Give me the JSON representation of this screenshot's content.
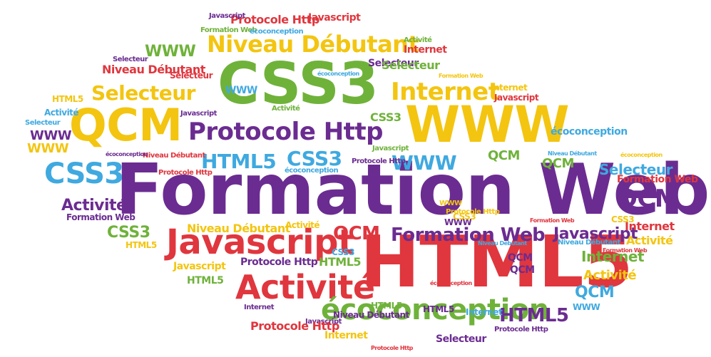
{
  "palette": {
    "purple": "#6b2c91",
    "green": "#6fb23a",
    "yellow": "#f3c510",
    "red": "#e0363e",
    "blue": "#3fa9e0"
  },
  "words": [
    {
      "text": "Formation Web",
      "color": "purple"
    },
    {
      "text": "HTML5",
      "color": "red"
    },
    {
      "text": "CSS3",
      "color": "green"
    },
    {
      "text": "WWW",
      "color": "yellow"
    },
    {
      "text": "QCM",
      "color": "yellow"
    },
    {
      "text": "Javascript",
      "color": "red"
    },
    {
      "text": "Activité",
      "color": "red"
    },
    {
      "text": "écoconception",
      "color": "green"
    },
    {
      "text": "Niveau Débutant",
      "color": "yellow"
    },
    {
      "text": "Protocole Http",
      "color": "purple"
    },
    {
      "text": "Internet",
      "color": "yellow"
    },
    {
      "text": "Selecteur",
      "color": "yellow"
    },
    {
      "text": "CSS3",
      "color": "blue"
    },
    {
      "text": "HTML5",
      "color": "blue"
    },
    {
      "text": "CSS3",
      "color": "blue"
    },
    {
      "text": "WWW",
      "color": "blue"
    },
    {
      "text": "QCM",
      "color": "purple"
    },
    {
      "text": "Formation Web",
      "color": "purple"
    },
    {
      "text": "QCM",
      "color": "red"
    },
    {
      "text": "Javascript",
      "color": "purple"
    },
    {
      "text": "Activité",
      "color": "purple"
    },
    {
      "text": "CSS3",
      "color": "green"
    },
    {
      "text": "WWW",
      "color": "green"
    },
    {
      "text": "Protocole Http",
      "color": "red"
    },
    {
      "text": "Niveau Débutant",
      "color": "red"
    },
    {
      "text": "Selecteur",
      "color": "purple"
    },
    {
      "text": "Internet",
      "color": "green"
    },
    {
      "text": "Formation Web",
      "color": "purple"
    },
    {
      "text": "Selecteur",
      "color": "blue"
    },
    {
      "text": "écoconception",
      "color": "blue"
    },
    {
      "text": "HTML5",
      "color": "purple"
    },
    {
      "text": "Internet",
      "color": "green"
    },
    {
      "text": "Activité",
      "color": "yellow"
    },
    {
      "text": "QCM",
      "color": "blue"
    },
    {
      "text": "Internet",
      "color": "red"
    },
    {
      "text": "Activité",
      "color": "yellow"
    },
    {
      "text": "Javascript",
      "color": "red"
    },
    {
      "text": "Internet",
      "color": "red"
    },
    {
      "text": "Formation Web",
      "color": "red"
    },
    {
      "text": "Selecteur",
      "color": "green"
    },
    {
      "text": "Protocole Http",
      "color": "purple"
    },
    {
      "text": "écoconception",
      "color": "purple"
    },
    {
      "text": "Internet",
      "color": "yellow"
    },
    {
      "text": "Niveau Débutant",
      "color": "yellow"
    },
    {
      "text": "Niveau Débutant",
      "color": "purple"
    },
    {
      "text": "Javascript",
      "color": "yellow"
    },
    {
      "text": "HTML5",
      "color": "green"
    },
    {
      "text": "HTML5",
      "color": "green"
    },
    {
      "text": "HTML5",
      "color": "yellow"
    },
    {
      "text": "CSS3",
      "color": "blue"
    },
    {
      "text": "QCM",
      "color": "green"
    },
    {
      "text": "QCM",
      "color": "green"
    },
    {
      "text": "QCM",
      "color": "purple"
    },
    {
      "text": "QCM",
      "color": "purple"
    },
    {
      "text": "WWW",
      "color": "purple"
    },
    {
      "text": "WWW",
      "color": "yellow"
    },
    {
      "text": "WWW",
      "color": "blue"
    },
    {
      "text": "WWW",
      "color": "purple"
    },
    {
      "text": "WWW",
      "color": "blue"
    },
    {
      "text": "Activité",
      "color": "yellow"
    },
    {
      "text": "Activité",
      "color": "green"
    },
    {
      "text": "Activité",
      "color": "blue"
    },
    {
      "text": "HTML5",
      "color": "yellow"
    },
    {
      "text": "Selecteur",
      "color": "purple"
    },
    {
      "text": "Selecteur",
      "color": "blue"
    },
    {
      "text": "Selecteur",
      "color": "red"
    },
    {
      "text": "Javascript",
      "color": "purple"
    },
    {
      "text": "Javascript",
      "color": "red"
    },
    {
      "text": "Javascript",
      "color": "purple"
    },
    {
      "text": "Javascript",
      "color": "purple"
    },
    {
      "text": "Protocole Http",
      "color": "red"
    },
    {
      "text": "Protocole Http",
      "color": "yellow"
    },
    {
      "text": "Protocole Http",
      "color": "purple"
    },
    {
      "text": "Protocole Http",
      "color": "purple"
    },
    {
      "text": "Protocole Http",
      "color": "red"
    },
    {
      "text": "Formation Web",
      "color": "purple"
    },
    {
      "text": "Formation Web",
      "color": "yellow"
    },
    {
      "text": "Formation Web",
      "color": "red"
    },
    {
      "text": "Formation Web",
      "color": "green"
    },
    {
      "text": "Niveau Débutant",
      "color": "blue"
    },
    {
      "text": "Niveau Débutant",
      "color": "blue"
    },
    {
      "text": "Niveau Débutant",
      "color": "red"
    },
    {
      "text": "écoconception",
      "color": "blue"
    },
    {
      "text": "écoconception",
      "color": "blue"
    },
    {
      "text": "écoconception",
      "color": "yellow"
    },
    {
      "text": "écoconception",
      "color": "purple"
    },
    {
      "text": "écoconception",
      "color": "blue"
    },
    {
      "text": "Internet",
      "color": "purple"
    },
    {
      "text": "Internet",
      "color": "yellow"
    },
    {
      "text": "Internet",
      "color": "blue"
    },
    {
      "text": "HTML5",
      "color": "purple"
    },
    {
      "text": "HTML5",
      "color": "green"
    },
    {
      "text": "CSS3",
      "color": "yellow"
    },
    {
      "text": "CSS3",
      "color": "yellow"
    },
    {
      "text": "CSS3",
      "color": "green"
    },
    {
      "text": "WWW",
      "color": "yellow"
    },
    {
      "text": "Javascript",
      "color": "green"
    },
    {
      "text": "Activité",
      "color": "green"
    },
    {
      "text": "Selecteur",
      "color": "purple"
    },
    {
      "text": "Formation Web",
      "color": "red"
    },
    {
      "text": "Protocole Http",
      "color": "red"
    },
    {
      "text": "Niveau Débutant",
      "color": "blue"
    },
    {
      "text": "écoconception",
      "color": "red"
    },
    {
      "text": "Javascript",
      "color": "red"
    }
  ]
}
